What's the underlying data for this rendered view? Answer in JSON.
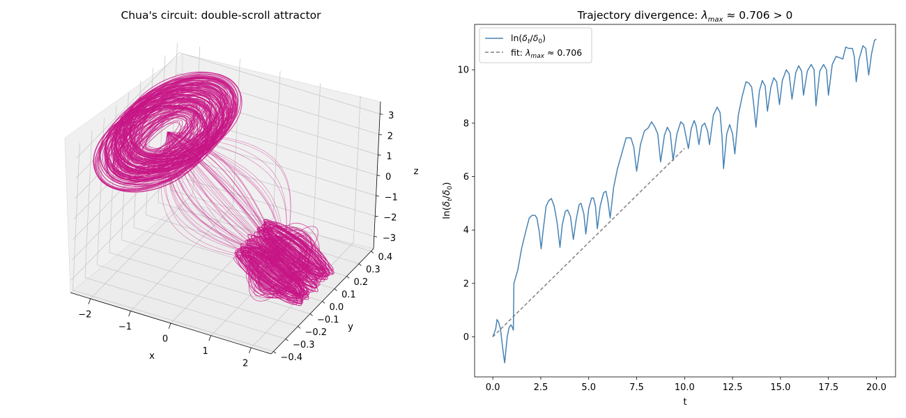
{
  "chart_data": [
    {
      "type": "line",
      "subtype": "3d-trajectory",
      "title": "Chua's circuit: double-scroll attractor",
      "xlabel": "x",
      "ylabel": "y",
      "zlabel": "z",
      "xticks": [
        "−2",
        "−1",
        "0",
        "1",
        "2"
      ],
      "yticks": [
        "−0.4",
        "−0.3",
        "−0.2",
        "−0.1",
        "0.0",
        "0.1",
        "0.2",
        "0.3",
        "0.4"
      ],
      "zticks": [
        "−3",
        "−2",
        "−1",
        "0",
        "1",
        "2",
        "3"
      ],
      "xlim": [
        -2.5,
        2.5
      ],
      "ylim": [
        -0.42,
        0.42
      ],
      "zlim": [
        -3.6,
        3.6
      ],
      "color": "#c71585",
      "scroll_centers": [
        {
          "x": -1.5,
          "y": 0.0,
          "z": 2.3
        },
        {
          "x": 1.5,
          "y": 0.0,
          "z": -2.3
        }
      ]
    },
    {
      "type": "line",
      "title": "Trajectory divergence: λ_max ≈ 0.706 > 0",
      "xlabel": "t",
      "ylabel": "ln(δt/δ0)",
      "xlim": [
        -0.95,
        21.0
      ],
      "ylim": [
        -1.5,
        11.7
      ],
      "xticks": [
        0.0,
        2.5,
        5.0,
        7.5,
        10.0,
        12.5,
        15.0,
        17.5,
        20.0
      ],
      "yticks": [
        0,
        2,
        4,
        6,
        8,
        10
      ],
      "legend_position": "upper left",
      "series": [
        {
          "name": "ln(δt/δ0)",
          "style": "solid",
          "color": "#4682b4",
          "points": [
            [
              0.0,
              0.0
            ],
            [
              0.15,
              0.3
            ],
            [
              0.22,
              0.65
            ],
            [
              0.3,
              0.55
            ],
            [
              0.4,
              0.3
            ],
            [
              0.48,
              -0.2
            ],
            [
              0.56,
              -0.7
            ],
            [
              0.62,
              -0.97
            ],
            [
              0.68,
              -0.5
            ],
            [
              0.75,
              0.0
            ],
            [
              0.85,
              0.35
            ],
            [
              0.95,
              0.45
            ],
            [
              1.02,
              0.35
            ],
            [
              1.07,
              0.25
            ],
            [
              1.1,
              2.0
            ],
            [
              1.3,
              2.5
            ],
            [
              1.5,
              3.3
            ],
            [
              1.7,
              3.9
            ],
            [
              1.9,
              4.45
            ],
            [
              2.05,
              4.55
            ],
            [
              2.2,
              4.55
            ],
            [
              2.3,
              4.45
            ],
            [
              2.42,
              3.95
            ],
            [
              2.52,
              3.3
            ],
            [
              2.62,
              3.95
            ],
            [
              2.78,
              4.9
            ],
            [
              2.92,
              5.1
            ],
            [
              3.05,
              5.18
            ],
            [
              3.2,
              4.9
            ],
            [
              3.35,
              4.3
            ],
            [
              3.5,
              3.35
            ],
            [
              3.62,
              4.2
            ],
            [
              3.78,
              4.7
            ],
            [
              3.9,
              4.75
            ],
            [
              4.05,
              4.5
            ],
            [
              4.2,
              3.65
            ],
            [
              4.35,
              4.4
            ],
            [
              4.5,
              4.95
            ],
            [
              4.6,
              5.0
            ],
            [
              4.75,
              4.6
            ],
            [
              4.85,
              3.85
            ],
            [
              5.0,
              4.8
            ],
            [
              5.15,
              5.2
            ],
            [
              5.25,
              5.2
            ],
            [
              5.35,
              4.9
            ],
            [
              5.45,
              4.05
            ],
            [
              5.6,
              4.9
            ],
            [
              5.78,
              5.4
            ],
            [
              5.9,
              5.45
            ],
            [
              6.0,
              5.1
            ],
            [
              6.12,
              4.45
            ],
            [
              6.3,
              5.6
            ],
            [
              6.5,
              6.3
            ],
            [
              6.7,
              6.8
            ],
            [
              6.95,
              7.45
            ],
            [
              7.2,
              7.45
            ],
            [
              7.35,
              7.1
            ],
            [
              7.5,
              6.2
            ],
            [
              7.7,
              7.2
            ],
            [
              7.9,
              7.7
            ],
            [
              8.1,
              7.82
            ],
            [
              8.28,
              8.05
            ],
            [
              8.45,
              7.85
            ],
            [
              8.6,
              7.6
            ],
            [
              8.75,
              6.55
            ],
            [
              8.95,
              7.55
            ],
            [
              9.1,
              7.85
            ],
            [
              9.25,
              7.65
            ],
            [
              9.4,
              6.6
            ],
            [
              9.6,
              7.6
            ],
            [
              9.8,
              8.05
            ],
            [
              9.95,
              7.95
            ],
            [
              10.1,
              7.4
            ],
            [
              10.2,
              7.05
            ],
            [
              10.35,
              7.8
            ],
            [
              10.5,
              8.1
            ],
            [
              10.6,
              7.9
            ],
            [
              10.75,
              7.2
            ],
            [
              10.9,
              7.9
            ],
            [
              11.05,
              8.0
            ],
            [
              11.2,
              7.7
            ],
            [
              11.3,
              7.2
            ],
            [
              11.5,
              8.3
            ],
            [
              11.7,
              8.6
            ],
            [
              11.85,
              8.4
            ],
            [
              11.95,
              7.5
            ],
            [
              12.03,
              6.3
            ],
            [
              12.2,
              7.6
            ],
            [
              12.35,
              7.95
            ],
            [
              12.5,
              7.6
            ],
            [
              12.62,
              6.85
            ],
            [
              12.8,
              8.3
            ],
            [
              13.0,
              9.0
            ],
            [
              13.2,
              9.55
            ],
            [
              13.35,
              9.5
            ],
            [
              13.5,
              9.35
            ],
            [
              13.62,
              8.6
            ],
            [
              13.72,
              7.85
            ],
            [
              13.9,
              9.2
            ],
            [
              14.05,
              9.6
            ],
            [
              14.2,
              9.4
            ],
            [
              14.32,
              8.45
            ],
            [
              14.5,
              9.35
            ],
            [
              14.65,
              9.7
            ],
            [
              14.8,
              9.55
            ],
            [
              14.95,
              8.7
            ],
            [
              15.1,
              9.6
            ],
            [
              15.3,
              10.0
            ],
            [
              15.45,
              9.85
            ],
            [
              15.6,
              8.9
            ],
            [
              15.8,
              9.9
            ],
            [
              15.95,
              10.15
            ],
            [
              16.1,
              9.95
            ],
            [
              16.2,
              9.05
            ],
            [
              16.4,
              9.95
            ],
            [
              16.6,
              10.2
            ],
            [
              16.75,
              10.0
            ],
            [
              16.85,
              8.65
            ],
            [
              17.05,
              9.95
            ],
            [
              17.25,
              10.2
            ],
            [
              17.4,
              10.0
            ],
            [
              17.5,
              9.05
            ],
            [
              17.7,
              10.2
            ],
            [
              17.9,
              10.5
            ],
            [
              18.1,
              10.45
            ],
            [
              18.25,
              10.4
            ],
            [
              18.4,
              10.85
            ],
            [
              18.55,
              10.8
            ],
            [
              18.75,
              10.8
            ],
            [
              18.85,
              10.5
            ],
            [
              18.95,
              9.55
            ],
            [
              19.1,
              10.4
            ],
            [
              19.3,
              10.9
            ],
            [
              19.45,
              10.8
            ],
            [
              19.6,
              9.8
            ],
            [
              19.75,
              10.6
            ],
            [
              19.9,
              11.1
            ],
            [
              20.0,
              11.15
            ]
          ]
        },
        {
          "name": "fit: λ_max ≈ 0.706",
          "style": "dashed",
          "color": "#808080",
          "points": [
            [
              0.0,
              0.0
            ],
            [
              10.0,
              7.06
            ]
          ]
        }
      ]
    }
  ],
  "legend": {
    "series1_label": "ln(δt/δ0)",
    "series2_label": "fit: λmax ≈ 0.706"
  }
}
